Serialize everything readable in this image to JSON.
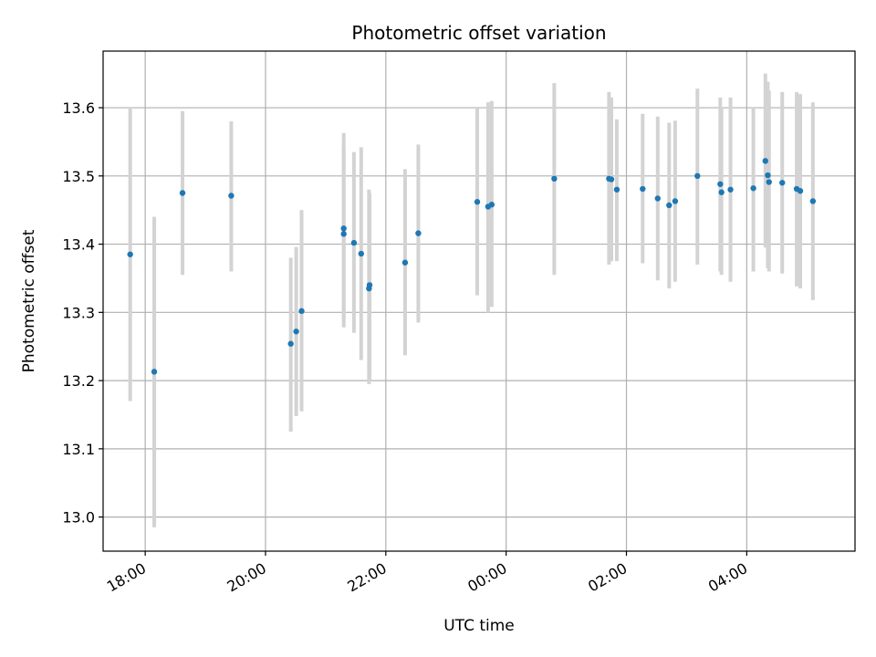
{
  "chart_data": {
    "type": "scatter",
    "title": "Photometric offset variation",
    "xlabel": "UTC time",
    "ylabel": "Photometric offset",
    "x_unit": "hours of UTC day; values of 24 and above fall on the following day",
    "xlim": [
      17.3,
      29.8
    ],
    "ylim": [
      12.95,
      13.683
    ],
    "x_ticks": [
      {
        "value": 18,
        "label": "18:00"
      },
      {
        "value": 20,
        "label": "20:00"
      },
      {
        "value": 22,
        "label": "22:00"
      },
      {
        "value": 24,
        "label": "00:00"
      },
      {
        "value": 26,
        "label": "02:00"
      },
      {
        "value": 28,
        "label": "04:00"
      }
    ],
    "y_ticks": [
      {
        "value": 13.0,
        "label": "13.0"
      },
      {
        "value": 13.1,
        "label": "13.1"
      },
      {
        "value": 13.2,
        "label": "13.2"
      },
      {
        "value": 13.3,
        "label": "13.3"
      },
      {
        "value": 13.4,
        "label": "13.4"
      },
      {
        "value": 13.5,
        "label": "13.5"
      },
      {
        "value": 13.6,
        "label": "13.6"
      }
    ],
    "grid": true,
    "colors": {
      "point": "#1f77b4",
      "errorbar": "#d3d3d3",
      "grid": "#b0b0b0"
    },
    "points": [
      {
        "x": 17.75,
        "y": 13.385,
        "ylo": 13.17,
        "yhi": 13.6
      },
      {
        "x": 18.15,
        "y": 13.213,
        "ylo": 12.985,
        "yhi": 13.44
      },
      {
        "x": 18.62,
        "y": 13.475,
        "ylo": 13.355,
        "yhi": 13.595
      },
      {
        "x": 19.43,
        "y": 13.471,
        "ylo": 13.36,
        "yhi": 13.58
      },
      {
        "x": 20.42,
        "y": 13.254,
        "ylo": 13.125,
        "yhi": 13.38
      },
      {
        "x": 20.51,
        "y": 13.272,
        "ylo": 13.148,
        "yhi": 13.396
      },
      {
        "x": 20.6,
        "y": 13.302,
        "ylo": 13.155,
        "yhi": 13.45
      },
      {
        "x": 21.3,
        "y": 13.423,
        "ylo": 13.278,
        "yhi": 13.563
      },
      {
        "x": 21.3,
        "y": 13.415,
        "ylo": 13.29,
        "yhi": 13.54
      },
      {
        "x": 21.47,
        "y": 13.402,
        "ylo": 13.27,
        "yhi": 13.535
      },
      {
        "x": 21.59,
        "y": 13.386,
        "ylo": 13.23,
        "yhi": 13.542
      },
      {
        "x": 21.72,
        "y": 13.335,
        "ylo": 13.195,
        "yhi": 13.48
      },
      {
        "x": 21.73,
        "y": 13.34,
        "ylo": 13.2,
        "yhi": 13.475
      },
      {
        "x": 22.32,
        "y": 13.373,
        "ylo": 13.237,
        "yhi": 13.51
      },
      {
        "x": 22.54,
        "y": 13.416,
        "ylo": 13.285,
        "yhi": 13.546
      },
      {
        "x": 23.52,
        "y": 13.462,
        "ylo": 13.325,
        "yhi": 13.6
      },
      {
        "x": 23.7,
        "y": 13.455,
        "ylo": 13.3,
        "yhi": 13.608
      },
      {
        "x": 23.76,
        "y": 13.458,
        "ylo": 13.308,
        "yhi": 13.61
      },
      {
        "x": 24.8,
        "y": 13.496,
        "ylo": 13.355,
        "yhi": 13.636
      },
      {
        "x": 25.71,
        "y": 13.496,
        "ylo": 13.37,
        "yhi": 13.623
      },
      {
        "x": 25.75,
        "y": 13.495,
        "ylo": 13.375,
        "yhi": 13.615
      },
      {
        "x": 25.84,
        "y": 13.48,
        "ylo": 13.375,
        "yhi": 13.583
      },
      {
        "x": 26.27,
        "y": 13.481,
        "ylo": 13.372,
        "yhi": 13.591
      },
      {
        "x": 26.52,
        "y": 13.467,
        "ylo": 13.347,
        "yhi": 13.587
      },
      {
        "x": 26.71,
        "y": 13.457,
        "ylo": 13.335,
        "yhi": 13.578
      },
      {
        "x": 26.81,
        "y": 13.463,
        "ylo": 13.345,
        "yhi": 13.581
      },
      {
        "x": 27.18,
        "y": 13.5,
        "ylo": 13.37,
        "yhi": 13.628
      },
      {
        "x": 27.56,
        "y": 13.488,
        "ylo": 13.36,
        "yhi": 13.615
      },
      {
        "x": 27.58,
        "y": 13.476,
        "ylo": 13.355,
        "yhi": 13.6
      },
      {
        "x": 27.73,
        "y": 13.48,
        "ylo": 13.345,
        "yhi": 13.615
      },
      {
        "x": 28.11,
        "y": 13.482,
        "ylo": 13.36,
        "yhi": 13.6
      },
      {
        "x": 28.31,
        "y": 13.522,
        "ylo": 13.395,
        "yhi": 13.65
      },
      {
        "x": 28.35,
        "y": 13.501,
        "ylo": 13.365,
        "yhi": 13.638
      },
      {
        "x": 28.37,
        "y": 13.491,
        "ylo": 13.36,
        "yhi": 13.625
      },
      {
        "x": 28.59,
        "y": 13.49,
        "ylo": 13.357,
        "yhi": 13.623
      },
      {
        "x": 28.83,
        "y": 13.481,
        "ylo": 13.338,
        "yhi": 13.623
      },
      {
        "x": 28.89,
        "y": 13.478,
        "ylo": 13.335,
        "yhi": 13.62
      },
      {
        "x": 29.1,
        "y": 13.463,
        "ylo": 13.318,
        "yhi": 13.608
      }
    ]
  }
}
